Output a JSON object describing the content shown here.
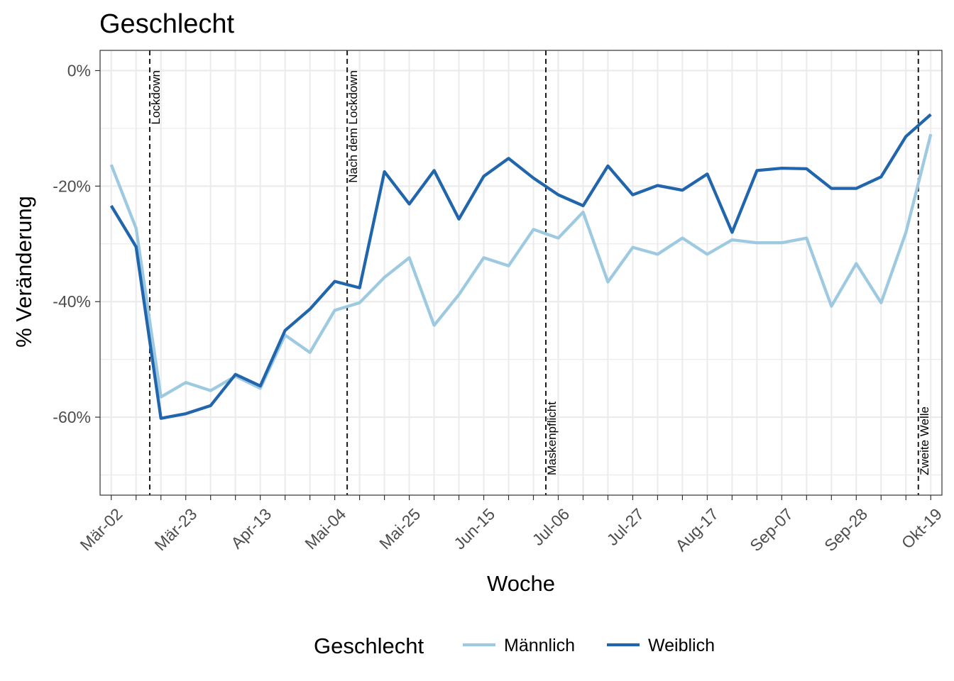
{
  "chart_data": {
    "type": "line",
    "title": "Geschlecht",
    "xlabel": "Woche",
    "ylabel": "% Veränderung",
    "x_tick_labels": [
      "Mär-02",
      "Mär-23",
      "Apr-13",
      "Mai-04",
      "Mai-25",
      "Jun-15",
      "Jul-06",
      "Jul-27",
      "Aug-17",
      "Sep-07",
      "Sep-28",
      "Okt-19"
    ],
    "x_tick_weeks": [
      0,
      3,
      6,
      9,
      12,
      15,
      18,
      21,
      24,
      27,
      30,
      33
    ],
    "x_minor_weeks": [
      0,
      1,
      2,
      3,
      4,
      5,
      6,
      7,
      8,
      9,
      10,
      11,
      12,
      13,
      14,
      15,
      16,
      17,
      18,
      19,
      20,
      21,
      22,
      23,
      24,
      25,
      26,
      27,
      28,
      29,
      30,
      31,
      32,
      33
    ],
    "xlim": [
      -0.45,
      33.45
    ],
    "y_ticks": [
      0,
      -20,
      -40,
      -60
    ],
    "y_tick_labels": [
      "0%",
      "-20%",
      "-40%",
      "-60%"
    ],
    "y_minor": [
      -10,
      -30,
      -50,
      -70
    ],
    "ylim": [
      -73.5,
      3.5
    ],
    "grid": true,
    "legend": {
      "title": "Geschlecht",
      "position": "bottom"
    },
    "series": [
      {
        "name": "Männlich",
        "color": "#9ecae1",
        "x": [
          0,
          1,
          2,
          3,
          4,
          5,
          6,
          7,
          8,
          9,
          10,
          11,
          12,
          13,
          14,
          15,
          16,
          17,
          18,
          19,
          20,
          21,
          22,
          23,
          24,
          25,
          26,
          27,
          28,
          29,
          30,
          31,
          32,
          33
        ],
        "values": [
          -16.3,
          -27.3,
          -56.5,
          -54.0,
          -55.4,
          -52.9,
          -55.0,
          -45.8,
          -48.8,
          -41.5,
          -40.2,
          -35.8,
          -32.4,
          -44.1,
          -38.8,
          -32.4,
          -33.8,
          -27.5,
          -29.0,
          -24.5,
          -36.6,
          -30.6,
          -31.8,
          -29.0,
          -31.8,
          -29.3,
          -29.8,
          -29.8,
          -29.0,
          -40.8,
          -33.4,
          -40.2,
          -28.0,
          -11.0
        ]
      },
      {
        "name": "Weiblich",
        "color": "#2166ac",
        "x": [
          0,
          1,
          2,
          3,
          4,
          5,
          6,
          7,
          8,
          9,
          10,
          11,
          12,
          13,
          14,
          15,
          16,
          17,
          18,
          19,
          20,
          21,
          22,
          23,
          24,
          25,
          26,
          27,
          28,
          29,
          30,
          31,
          32,
          33
        ],
        "values": [
          -23.4,
          -30.5,
          -60.2,
          -59.4,
          -58.0,
          -52.6,
          -54.6,
          -45.0,
          -41.3,
          -36.5,
          -37.6,
          -17.5,
          -23.1,
          -17.3,
          -25.7,
          -18.3,
          -15.2,
          -18.6,
          -21.5,
          -23.4,
          -16.5,
          -21.5,
          -19.9,
          -20.7,
          -17.9,
          -28.0,
          -17.3,
          -16.9,
          -17.0,
          -20.4,
          -20.4,
          -18.4,
          -11.4,
          -7.6
        ]
      }
    ],
    "events": [
      {
        "label": "Lockdown",
        "week": 1.55,
        "label_pos": "top"
      },
      {
        "label": "Nach dem Lockdown",
        "week": 9.5,
        "label_pos": "top"
      },
      {
        "label": "Maskenpflicht",
        "week": 17.5,
        "label_pos": "bottom"
      },
      {
        "label": "Zweite Welle",
        "week": 32.5,
        "label_pos": "bottom"
      }
    ]
  }
}
